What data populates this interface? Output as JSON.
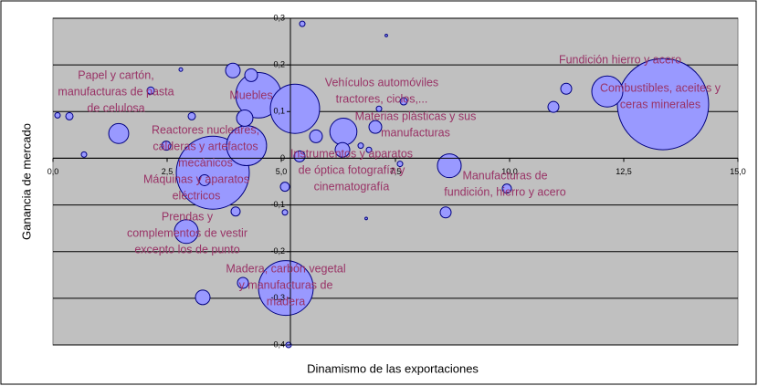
{
  "chart_data": {
    "type": "bubble",
    "xlabel": "Dinamismo de las exportaciones",
    "ylabel": "Ganancia de mercado",
    "xlim": [
      0,
      15
    ],
    "ylim": [
      -0.4,
      0.3
    ],
    "xticks": [
      {
        "value": 0,
        "label": "0,0"
      },
      {
        "value": 2.5,
        "label": "2,5"
      },
      {
        "value": 5,
        "label": "5,0"
      },
      {
        "value": 7.5,
        "label": "7,5"
      },
      {
        "value": 10,
        "label": "10,0"
      },
      {
        "value": 12.5,
        "label": "12,5"
      },
      {
        "value": 15,
        "label": "15,0"
      }
    ],
    "yticks": [
      {
        "value": -0.4,
        "label": "-0,4"
      },
      {
        "value": -0.3,
        "label": "-0,3"
      },
      {
        "value": -0.2,
        "label": "-0,2"
      },
      {
        "value": -0.1,
        "label": "-0,1"
      },
      0,
      {
        "value": 0.1,
        "label": "0,1"
      },
      {
        "value": 0.2,
        "label": "0,2"
      },
      {
        "value": 0.3,
        "label": "0,3"
      }
    ],
    "y_axis_crosses_at": 5.2,
    "grid": true,
    "color": "#9999ff",
    "x": [
      13.36,
      12.14,
      11.24,
      10.96,
      8.68,
      9.94,
      8.6,
      4.5,
      5.3,
      3.94,
      4.34,
      3.5,
      4.24,
      4.2,
      2.92,
      5.1,
      3.28,
      4.16,
      1.44,
      6.36,
      6.34,
      7.06,
      5.76,
      5.4,
      5.08,
      4.0,
      3.32,
      2.48,
      2.14,
      3.04,
      0.36,
      0.1,
      0.68,
      5.46,
      5.08,
      5.16,
      7.68,
      7.6,
      7.14,
      2.8,
      7.3,
      6.86,
      6.92,
      6.74
    ],
    "values": [
      0.116,
      0.143,
      0.149,
      0.11,
      -0.016,
      -0.065,
      -0.116,
      0.135,
      0.106,
      0.188,
      0.178,
      -0.031,
      0.027,
      0.086,
      -0.157,
      -0.278,
      -0.298,
      -0.267,
      0.053,
      0.057,
      0.018,
      0.067,
      0.047,
      0.004,
      -0.061,
      -0.114,
      -0.047,
      0.027,
      0.145,
      0.09,
      0.09,
      0.092,
      0.008,
      0.288,
      -0.116,
      -0.4,
      0.122,
      -0.012,
      0.106,
      0.19,
      0.263,
      -0.129,
      0.018,
      0.027
    ],
    "sizes": [
      250,
      29,
      3.6,
      3.6,
      17,
      2.5,
      3.6,
      62,
      73,
      6.4,
      4.9,
      160,
      48,
      8,
      17,
      90,
      6.4,
      3.6,
      12,
      22,
      6.4,
      4.9,
      4.9,
      3.6,
      2.5,
      2.5,
      3.6,
      2.5,
      1.6,
      1.6,
      1.6,
      0.9,
      0.9,
      0.9,
      0.9,
      0.9,
      1.6,
      0.9,
      0.9,
      0.4,
      0.2,
      0.2,
      0.9,
      0.9
    ],
    "annotations": [
      [
        "Papel y cartón,",
        "manufacturas de pasta",
        "de celulosa"
      ],
      [
        "Muebles"
      ],
      [
        "Vehículos automóviles",
        "tractores, ciclos,..."
      ],
      [
        "Materias plásticas y sus",
        "manufacturas"
      ],
      [
        "Reactores nucleares,",
        "calderas y artefactos",
        "mecánicos"
      ],
      [
        "Instrumentos y aparatos",
        "de óptica fotografía y",
        "cinematografía"
      ],
      [
        "Máquinas y aparatos",
        "eléctricos"
      ],
      [
        "Manufacturas de",
        "fundición, hierro y acero"
      ],
      [
        "Fundición hierro y acero"
      ],
      [
        "Combustibles, aceites y",
        "ceras minerales"
      ],
      [
        "Prendas y",
        "complementos de vestir",
        "excepto los de punto"
      ],
      [
        "Madera, carbón vegetal",
        "y manufacturas de",
        "madera"
      ]
    ]
  }
}
